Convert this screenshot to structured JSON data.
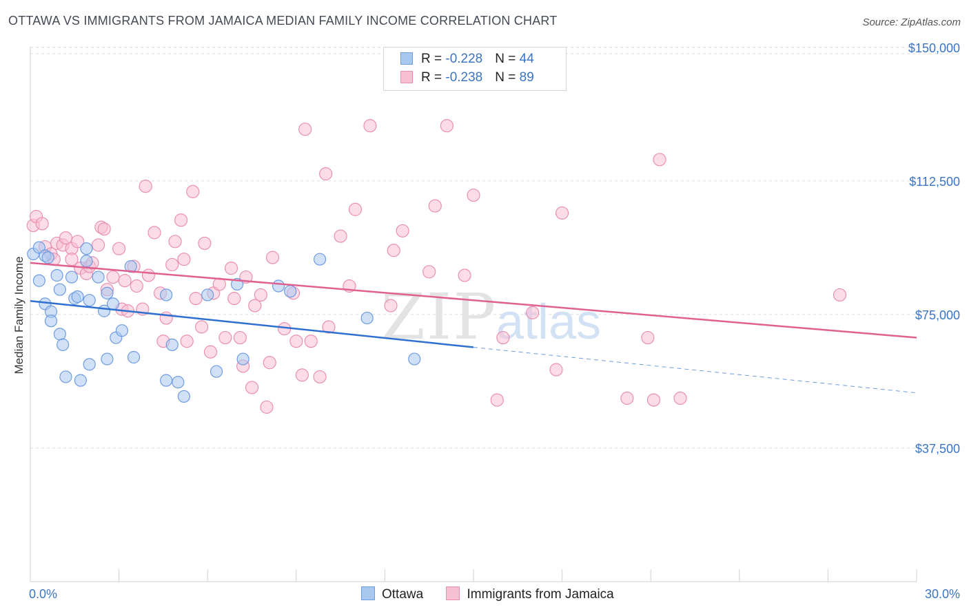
{
  "title": "OTTAWA VS IMMIGRANTS FROM JAMAICA MEDIAN FAMILY INCOME CORRELATION CHART",
  "source": "Source: ZipAtlas.com",
  "watermark": {
    "zip": "ZIP",
    "atlas": "atlas"
  },
  "colors": {
    "ottawa_fill": "#a9c8f0",
    "ottawa_stroke": "#6d9be0",
    "ottawa_line": "#2f6fd0",
    "jamaica_fill": "#f7c0d3",
    "jamaica_stroke": "#ea8fb0",
    "jamaica_line": "#e06090",
    "axis_label": "#3a74c4",
    "grid": "#dcdcdc"
  },
  "legend": {
    "ottawa": {
      "r_label": "R = ",
      "r_value": "-0.228",
      "n_label": "N = ",
      "n_value": "44"
    },
    "jamaica": {
      "r_label": "R = ",
      "r_value": "-0.238",
      "n_label": "N = ",
      "n_value": "89"
    }
  },
  "bottom_legend": {
    "ottawa": "Ottawa",
    "jamaica": "Immigrants from Jamaica"
  },
  "chart_data": {
    "type": "scatter",
    "title": "OTTAWA VS IMMIGRANTS FROM JAMAICA MEDIAN FAMILY INCOME CORRELATION CHART",
    "xlabel": "",
    "ylabel": "Median Family Income",
    "xlim": [
      0,
      30
    ],
    "ylim": [
      0,
      157500
    ],
    "x_tick_labels": [
      "0.0%",
      "30.0%"
    ],
    "y_ticks": [
      37500,
      75000,
      112500,
      150000
    ],
    "y_tick_labels": [
      "$37,500",
      "$75,000",
      "$112,500",
      "$150,000"
    ],
    "grid": true,
    "legend_position": "top-center",
    "series": [
      {
        "name": "Ottawa",
        "r": -0.228,
        "n": 44,
        "trend": {
          "x_start": 0,
          "y_start": 78800,
          "x_end_solid": 15,
          "y_end_solid": 65800,
          "x_end_dashed": 30,
          "y_end_dashed": 53000
        },
        "points": [
          [
            0.1,
            92000
          ],
          [
            0.3,
            93800
          ],
          [
            0.3,
            84500
          ],
          [
            0.5,
            91500
          ],
          [
            0.5,
            78000
          ],
          [
            0.6,
            91000
          ],
          [
            0.7,
            75800
          ],
          [
            0.7,
            73200
          ],
          [
            0.9,
            86000
          ],
          [
            1.0,
            82000
          ],
          [
            1.0,
            69500
          ],
          [
            1.1,
            66500
          ],
          [
            1.2,
            57500
          ],
          [
            1.4,
            85500
          ],
          [
            1.5,
            79500
          ],
          [
            1.6,
            80000
          ],
          [
            1.7,
            56500
          ],
          [
            1.9,
            93500
          ],
          [
            1.9,
            90000
          ],
          [
            2.0,
            79000
          ],
          [
            2.0,
            61000
          ],
          [
            2.3,
            85500
          ],
          [
            2.5,
            76000
          ],
          [
            2.6,
            62500
          ],
          [
            2.6,
            81000
          ],
          [
            2.8,
            78000
          ],
          [
            2.9,
            68500
          ],
          [
            3.1,
            70500
          ],
          [
            3.4,
            88500
          ],
          [
            3.5,
            63000
          ],
          [
            4.6,
            80500
          ],
          [
            4.6,
            56500
          ],
          [
            4.8,
            66500
          ],
          [
            5.0,
            56000
          ],
          [
            5.2,
            52000
          ],
          [
            6.0,
            80500
          ],
          [
            6.3,
            59000
          ],
          [
            7.0,
            83500
          ],
          [
            7.2,
            62500
          ],
          [
            8.4,
            83000
          ],
          [
            8.8,
            81500
          ],
          [
            9.8,
            90500
          ],
          [
            11.4,
            74000
          ],
          [
            13.0,
            62500
          ]
        ]
      },
      {
        "name": "Immigrants from Jamaica",
        "r": -0.238,
        "n": 89,
        "trend": {
          "x_start": 0,
          "y_start": 89500,
          "x_end": 30,
          "y_end": 68500
        },
        "points": [
          [
            0.1,
            100000
          ],
          [
            0.2,
            102500
          ],
          [
            0.4,
            100500
          ],
          [
            0.5,
            94000
          ],
          [
            0.7,
            92000
          ],
          [
            0.8,
            90500
          ],
          [
            0.9,
            95000
          ],
          [
            1.1,
            94500
          ],
          [
            1.2,
            96500
          ],
          [
            1.4,
            93500
          ],
          [
            1.4,
            90500
          ],
          [
            1.6,
            95500
          ],
          [
            1.7,
            88000
          ],
          [
            1.9,
            86500
          ],
          [
            2.0,
            88500
          ],
          [
            2.1,
            89500
          ],
          [
            2.3,
            94500
          ],
          [
            2.4,
            99500
          ],
          [
            2.5,
            99000
          ],
          [
            2.6,
            82000
          ],
          [
            2.8,
            85500
          ],
          [
            3.0,
            93500
          ],
          [
            3.1,
            76500
          ],
          [
            3.2,
            84500
          ],
          [
            3.3,
            76000
          ],
          [
            3.5,
            88500
          ],
          [
            3.6,
            83000
          ],
          [
            3.8,
            76500
          ],
          [
            3.9,
            111000
          ],
          [
            4.0,
            86000
          ],
          [
            4.2,
            98000
          ],
          [
            4.4,
            81000
          ],
          [
            4.5,
            67500
          ],
          [
            4.6,
            74000
          ],
          [
            4.8,
            89000
          ],
          [
            4.9,
            95500
          ],
          [
            5.1,
            101500
          ],
          [
            5.2,
            90500
          ],
          [
            5.3,
            67500
          ],
          [
            5.5,
            109500
          ],
          [
            5.6,
            79500
          ],
          [
            5.8,
            71500
          ],
          [
            5.9,
            95000
          ],
          [
            6.1,
            64500
          ],
          [
            6.2,
            81000
          ],
          [
            6.4,
            83500
          ],
          [
            6.6,
            68500
          ],
          [
            6.8,
            88000
          ],
          [
            6.9,
            79500
          ],
          [
            7.1,
            68500
          ],
          [
            7.2,
            60500
          ],
          [
            7.3,
            85500
          ],
          [
            7.5,
            54500
          ],
          [
            7.6,
            77500
          ],
          [
            7.8,
            80500
          ],
          [
            8.0,
            49000
          ],
          [
            8.1,
            61500
          ],
          [
            8.2,
            91000
          ],
          [
            8.6,
            71000
          ],
          [
            8.9,
            81000
          ],
          [
            9.0,
            67500
          ],
          [
            9.2,
            58000
          ],
          [
            9.3,
            127000
          ],
          [
            9.5,
            67500
          ],
          [
            9.8,
            57500
          ],
          [
            10.0,
            114500
          ],
          [
            10.1,
            71500
          ],
          [
            10.5,
            97000
          ],
          [
            10.8,
            83000
          ],
          [
            11.0,
            104500
          ],
          [
            11.5,
            128000
          ],
          [
            12.2,
            77500
          ],
          [
            12.3,
            93000
          ],
          [
            12.6,
            98500
          ],
          [
            13.5,
            87000
          ],
          [
            13.7,
            105500
          ],
          [
            14.1,
            128000
          ],
          [
            14.7,
            86000
          ],
          [
            15.0,
            108500
          ],
          [
            15.8,
            51000
          ],
          [
            16.0,
            68500
          ],
          [
            17.0,
            75500
          ],
          [
            17.8,
            59500
          ],
          [
            18.0,
            103500
          ],
          [
            20.2,
            51500
          ],
          [
            20.9,
            68500
          ],
          [
            21.1,
            51000
          ],
          [
            21.3,
            118500
          ],
          [
            22.0,
            51500
          ],
          [
            27.4,
            80500
          ]
        ]
      }
    ]
  }
}
